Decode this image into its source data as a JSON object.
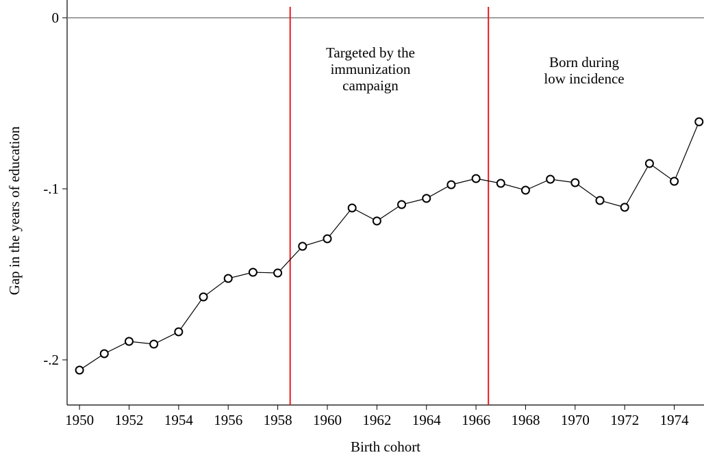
{
  "chart_data": {
    "type": "line",
    "x_label": "Birth cohort",
    "y_label": "Gap in the years of education",
    "x": [
      1950,
      1951,
      1952,
      1953,
      1954,
      1955,
      1956,
      1957,
      1958,
      1959,
      1960,
      1961,
      1962,
      1963,
      1964,
      1965,
      1966,
      1967,
      1968,
      1969,
      1970,
      1971,
      1972,
      1973,
      1974,
      1975
    ],
    "values": [
      -0.206,
      -0.1964,
      -0.1892,
      -0.1908,
      -0.1836,
      -0.1632,
      -0.1524,
      -0.1488,
      -0.1492,
      -0.1336,
      -0.1292,
      -0.1112,
      -0.1188,
      -0.1092,
      -0.1056,
      -0.0976,
      -0.094,
      -0.0968,
      -0.1008,
      -0.0944,
      -0.0964,
      -0.1068,
      -0.1108,
      -0.0852,
      -0.0956,
      -0.0608
    ],
    "color": "#000000",
    "xlim": [
      1949.5,
      1975.2
    ],
    "ylim": [
      -0.2264,
      0.0104
    ],
    "xticks": [
      1950,
      1952,
      1954,
      1956,
      1958,
      1960,
      1962,
      1964,
      1966,
      1968,
      1970,
      1972,
      1974
    ],
    "yticks": [
      0,
      {
        "value": -0.1,
        "label": "-.1"
      },
      {
        "value": -0.2,
        "label": "-.2"
      }
    ],
    "reference_y": 0,
    "reference_y_color": "#808080",
    "vlines": [
      1958.5,
      1966.5
    ],
    "vline_color": "#e8191b",
    "annotations": [
      [
        "Targeted by the",
        "immunization",
        "campaign"
      ],
      [
        "Born during",
        "low incidence"
      ]
    ]
  }
}
